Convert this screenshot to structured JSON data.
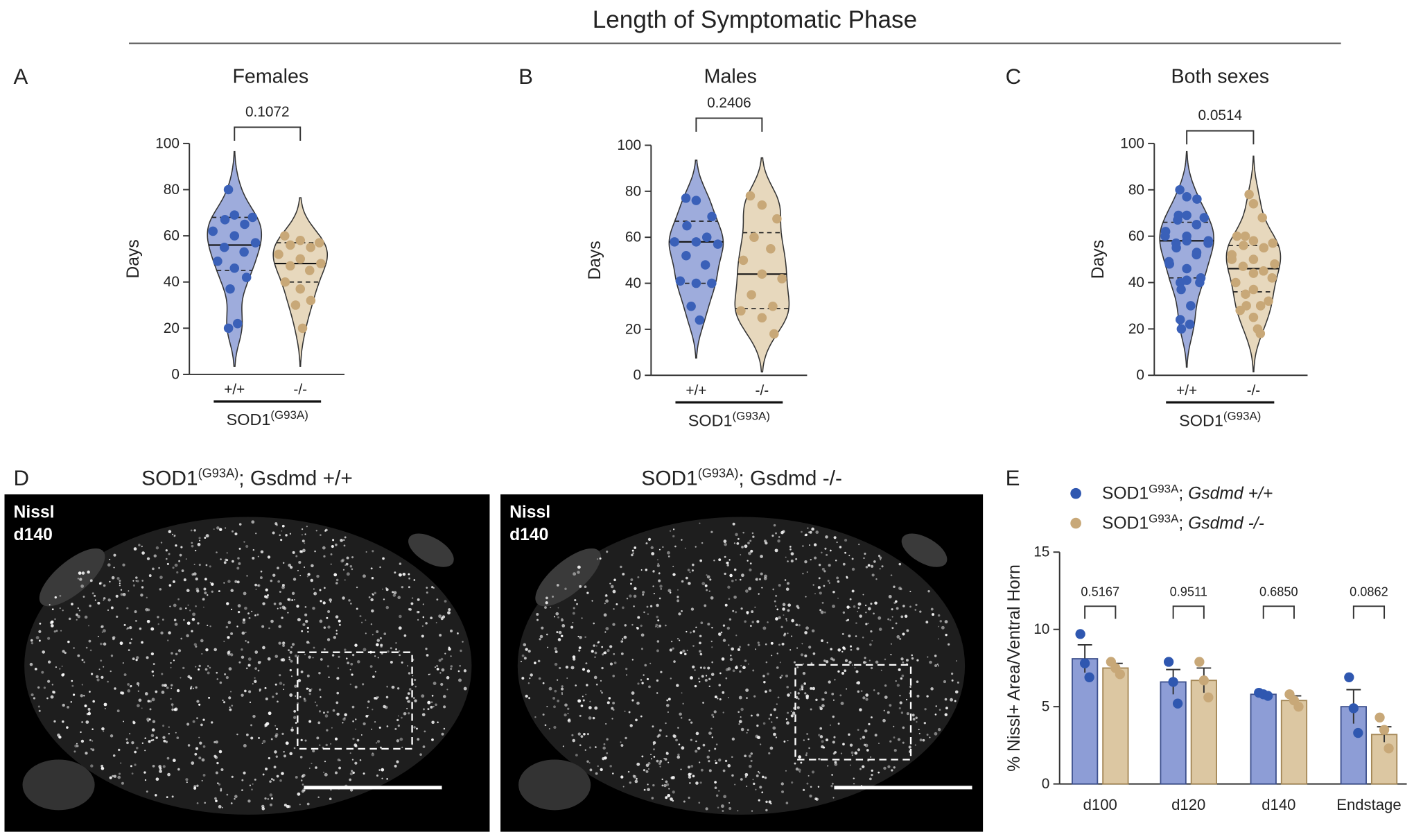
{
  "figure_title": "Length of Symptomatic Phase",
  "chart_data": [
    {
      "type": "violin",
      "panel": "A",
      "title": "Females",
      "ylabel": "Days",
      "categories": [
        "+/+",
        "-/-"
      ],
      "group_label": [
        "SOD1",
        "(G93A)"
      ],
      "p_value": "0.1072",
      "ylim": [
        0,
        100
      ],
      "yticks": [
        0,
        20,
        40,
        60,
        80,
        100
      ],
      "series": [
        {
          "color": "#3a60b8",
          "fill": "#8d9dd6",
          "values": [
            80,
            69,
            68,
            67,
            65,
            62,
            60,
            57,
            55,
            53,
            49,
            46,
            42,
            37,
            22,
            20
          ],
          "median": 56,
          "quartiles": [
            45,
            68
          ]
        },
        {
          "color": "#c8a878",
          "fill": "#e3d1b1",
          "values": [
            60,
            58,
            57,
            56,
            55,
            52,
            50,
            48,
            47,
            45,
            40,
            37,
            32,
            30,
            20
          ],
          "median": 48,
          "quartiles": [
            40,
            57
          ]
        }
      ]
    },
    {
      "type": "violin",
      "panel": "B",
      "title": "Males",
      "ylabel": "Days",
      "categories": [
        "+/+",
        "-/-"
      ],
      "group_label": [
        "SOD1",
        "(G93A)"
      ],
      "p_value": "0.2406",
      "ylim": [
        0,
        100
      ],
      "yticks": [
        0,
        20,
        40,
        60,
        80,
        100
      ],
      "series": [
        {
          "color": "#3a60b8",
          "fill": "#8d9dd6",
          "values": [
            77,
            76,
            69,
            65,
            60,
            58,
            58,
            57,
            52,
            48,
            41,
            40,
            40,
            30,
            24
          ],
          "median": 58,
          "quartiles": [
            40,
            67
          ]
        },
        {
          "color": "#c8a878",
          "fill": "#e3d1b1",
          "values": [
            78,
            74,
            68,
            60,
            55,
            50,
            44,
            42,
            35,
            30,
            28,
            25,
            18
          ],
          "median": 44,
          "quartiles": [
            29,
            62
          ]
        }
      ]
    },
    {
      "type": "violin",
      "panel": "C",
      "title": "Both sexes",
      "ylabel": "Days",
      "categories": [
        "+/+",
        "-/-"
      ],
      "group_label": [
        "SOD1",
        "(G93A)"
      ],
      "p_value": "0.0514",
      "ylim": [
        0,
        100
      ],
      "yticks": [
        0,
        20,
        40,
        60,
        80,
        100
      ],
      "series": [
        {
          "color": "#3a60b8",
          "fill": "#8d9dd6",
          "values": [
            80,
            69,
            68,
            67,
            65,
            62,
            60,
            57,
            55,
            53,
            49,
            46,
            42,
            37,
            22,
            20,
            77,
            76,
            69,
            65,
            60,
            58,
            58,
            57,
            52,
            48,
            41,
            40,
            40,
            30,
            24
          ],
          "median": 58,
          "quartiles": [
            42,
            66
          ]
        },
        {
          "color": "#c8a878",
          "fill": "#e3d1b1",
          "values": [
            60,
            58,
            57,
            56,
            55,
            52,
            50,
            48,
            47,
            45,
            40,
            37,
            32,
            30,
            20,
            78,
            74,
            68,
            60,
            55,
            50,
            44,
            42,
            35,
            30,
            28,
            25,
            18
          ],
          "median": 46,
          "quartiles": [
            36,
            56
          ]
        }
      ]
    },
    {
      "type": "bar",
      "panel": "E",
      "ylabel": "% Nissl+ Area/Ventral Horn",
      "categories": [
        "d100",
        "d120",
        "d140",
        "Endstage"
      ],
      "p_values": [
        "0.5167",
        "0.9511",
        "0.6850",
        "0.0862"
      ],
      "ylim": [
        0,
        15
      ],
      "yticks": [
        0,
        5,
        10,
        15
      ],
      "series": [
        {
          "name": [
            "SOD1",
            "G93A",
            "; ",
            "Gsdmd +/+"
          ],
          "color": "#2f57b0",
          "fill": "#8d9dd6",
          "values": [
            8.1,
            6.6,
            5.8,
            5.0
          ],
          "errors": [
            0.9,
            0.8,
            0.1,
            1.1
          ],
          "points": [
            [
              9.7,
              7.8,
              6.9
            ],
            [
              7.9,
              6.6,
              5.2
            ],
            [
              5.9,
              5.8,
              5.7
            ],
            [
              6.9,
              4.9,
              3.3
            ]
          ]
        },
        {
          "name": [
            "SOD1",
            "G93A",
            "; ",
            "Gsdmd -/-"
          ],
          "color": "#c8a878",
          "fill": "#dcc7a2",
          "values": [
            7.5,
            6.7,
            5.4,
            3.2
          ],
          "errors": [
            0.3,
            0.8,
            0.3,
            0.5
          ],
          "points": [
            [
              7.9,
              7.5,
              7.1
            ],
            [
              7.9,
              6.7,
              5.6
            ],
            [
              5.8,
              5.4,
              5.0
            ],
            [
              4.3,
              3.5,
              2.3
            ]
          ]
        }
      ]
    }
  ],
  "images": {
    "panel": "D",
    "items": [
      {
        "title": [
          "SOD1",
          "(G93A)",
          "; Gsdmd +/+"
        ],
        "stain": "Nissl",
        "timepoint": "d140"
      },
      {
        "title": [
          "SOD1",
          "(G93A)",
          "; Gsdmd -/-"
        ],
        "stain": "Nissl",
        "timepoint": "d140"
      }
    ]
  }
}
